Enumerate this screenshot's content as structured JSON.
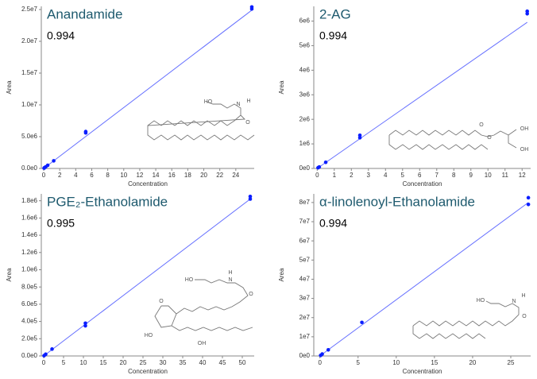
{
  "chart_data": [
    {
      "type": "scatter",
      "title": "Anandamide",
      "annotation": "0.994",
      "xlabel": "Concentration",
      "ylabel": "Area",
      "x": [
        0.05,
        0.1,
        0.25,
        0.5,
        1.25,
        5.25,
        5.25,
        26,
        26
      ],
      "values": [
        50000,
        120000,
        250000,
        500000,
        1200000,
        5600000,
        5800000,
        25100000,
        25400000
      ],
      "color": "#0a1eff",
      "fit": {
        "x": [
          0,
          26
        ],
        "values": [
          0,
          24900000
        ],
        "color": "#6670ff"
      },
      "xlim": [
        -0.3,
        26.3
      ],
      "ylim": [
        0,
        25500000
      ],
      "xticks": [
        0,
        2,
        4,
        6,
        8,
        10,
        12,
        14,
        16,
        18,
        20,
        22,
        24
      ],
      "yticks": [
        {
          "value": 0,
          "label": "0.0e0"
        },
        {
          "value": 5000000,
          "label": "5.0e6"
        },
        {
          "value": 10000000,
          "label": "1.0e7"
        },
        {
          "value": 15000000,
          "label": "1.5e7"
        },
        {
          "value": 20000000,
          "label": "2.0e7"
        },
        {
          "value": 25000000,
          "label": "2.5e7"
        }
      ],
      "structure_labels": [
        "HO",
        "N",
        "H",
        "O"
      ]
    },
    {
      "type": "scatter",
      "title": "2-AG",
      "annotation": "0.994",
      "xlabel": "Concentration",
      "ylabel": "Area",
      "x": [
        0.05,
        0.12,
        0.5,
        2.5,
        2.5,
        12.3,
        12.3
      ],
      "values": [
        30000,
        60000,
        250000,
        1250000,
        1350000,
        6300000,
        6400000
      ],
      "color": "#0a1eff",
      "fit": {
        "x": [
          0,
          12.3
        ],
        "values": [
          0,
          5950000
        ],
        "color": "#6670ff"
      },
      "xlim": [
        -0.2,
        12.5
      ],
      "ylim": [
        0,
        6600000
      ],
      "xticks": [
        0,
        1,
        2,
        3,
        4,
        5,
        6,
        7,
        8,
        9,
        10,
        11,
        12
      ],
      "yticks": [
        {
          "value": 0,
          "label": "0e0"
        },
        {
          "value": 1000000,
          "label": "1e6"
        },
        {
          "value": 2000000,
          "label": "2e6"
        },
        {
          "value": 3000000,
          "label": "3e6"
        },
        {
          "value": 4000000,
          "label": "4e6"
        },
        {
          "value": 5000000,
          "label": "5e6"
        },
        {
          "value": 6000000,
          "label": "6e6"
        }
      ],
      "structure_labels": [
        "O",
        "O",
        "OH",
        "OH"
      ]
    },
    {
      "type": "scatter",
      "title": "PGE₂-Ethanolamide",
      "annotation": "0.995",
      "xlabel": "Concentration",
      "ylabel": "Area",
      "x": [
        0.1,
        0.5,
        2.1,
        10.5,
        10.5,
        52,
        52
      ],
      "values": [
        4000,
        20000,
        80000,
        350000,
        380000,
        1820000,
        1850000
      ],
      "color": "#0a1eff",
      "fit": {
        "x": [
          0,
          52
        ],
        "values": [
          0,
          1820000
        ],
        "color": "#6670ff"
      },
      "xlim": [
        -0.6,
        53
      ],
      "ylim": [
        0,
        1880000
      ],
      "xticks": [
        0,
        5,
        10,
        15,
        20,
        25,
        30,
        35,
        40,
        45,
        50
      ],
      "yticks": [
        {
          "value": 0,
          "label": "0.0e0"
        },
        {
          "value": 200000,
          "label": "2.0e5"
        },
        {
          "value": 400000,
          "label": "4.0e5"
        },
        {
          "value": 600000,
          "label": "6.0e5"
        },
        {
          "value": 800000,
          "label": "8.0e5"
        },
        {
          "value": 1000000,
          "label": "1.0e6"
        },
        {
          "value": 1200000,
          "label": "1.2e6"
        },
        {
          "value": 1400000,
          "label": "1.4e6"
        },
        {
          "value": 1600000,
          "label": "1.6e6"
        },
        {
          "value": 1800000,
          "label": "1.8e6"
        }
      ],
      "structure_labels": [
        "O",
        "HO",
        "N",
        "H",
        "O",
        "HO",
        "OH"
      ]
    },
    {
      "type": "scatter",
      "title": "α-linolenoyl-Ethanolamide",
      "annotation": "0.994",
      "xlabel": "Concentration",
      "ylabel": "Area",
      "x": [
        0.1,
        0.3,
        1.1,
        5.5,
        27.3,
        27.3
      ],
      "values": [
        300000,
        1000000,
        3200000,
        17500000,
        79000000,
        82500000
      ],
      "color": "#0a1eff",
      "fit": {
        "x": [
          0,
          27.3
        ],
        "values": [
          0,
          80000000
        ],
        "color": "#6670ff"
      },
      "xlim": [
        -0.8,
        27.6
      ],
      "ylim": [
        0,
        84500000
      ],
      "xticks": [
        0,
        5,
        10,
        15,
        20,
        25
      ],
      "yticks": [
        {
          "value": 0,
          "label": "0e0"
        },
        {
          "value": 10000000,
          "label": "1e7"
        },
        {
          "value": 20000000,
          "label": "2e7"
        },
        {
          "value": 30000000,
          "label": "3e7"
        },
        {
          "value": 40000000,
          "label": "4e7"
        },
        {
          "value": 50000000,
          "label": "5e7"
        },
        {
          "value": 60000000,
          "label": "6e7"
        },
        {
          "value": 70000000,
          "label": "7e7"
        },
        {
          "value": 80000000,
          "label": "8e7"
        }
      ],
      "structure_labels": [
        "HO",
        "N",
        "H",
        "O"
      ]
    }
  ]
}
